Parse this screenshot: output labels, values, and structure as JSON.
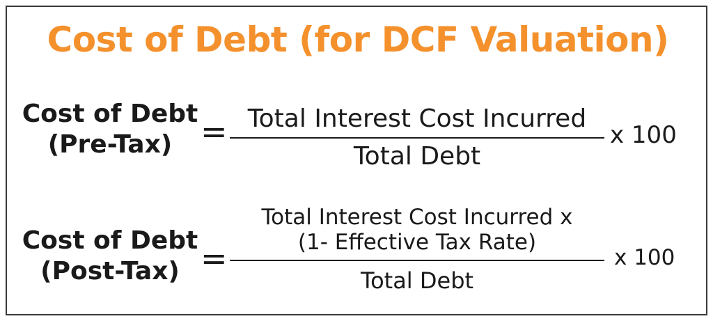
{
  "title": "Cost of Debt (for DCF Valuation)",
  "colors": {
    "title": "#f4912d",
    "text": "#1a1a1a",
    "border": "#3a3a3a"
  },
  "formula_pre_tax": {
    "lhs_line1": "Cost of Debt",
    "lhs_line2": "(Pre-Tax)",
    "equals": "=",
    "numerator": "Total Interest Cost Incurred",
    "denominator": "Total Debt",
    "multiplier": "x 100"
  },
  "formula_post_tax": {
    "lhs_line1": "Cost of Debt",
    "lhs_line2": "(Post-Tax)",
    "equals": "=",
    "numerator_line1": "Total Interest Cost Incurred x",
    "numerator_line2": "(1- Effective Tax Rate)",
    "denominator": "Total Debt",
    "multiplier": "x 100"
  }
}
